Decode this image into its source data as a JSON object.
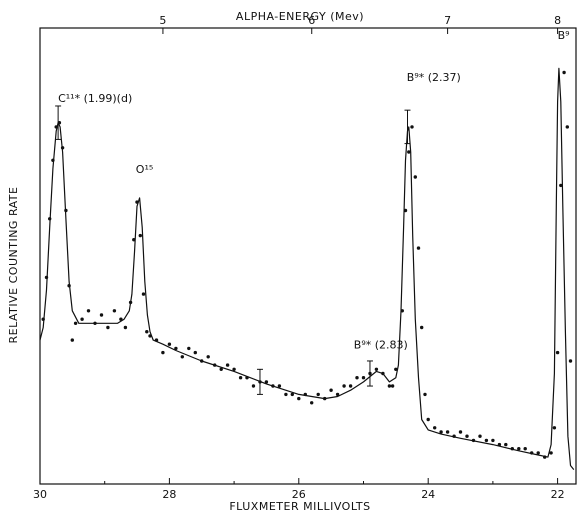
{
  "chart_data": {
    "type": "scatter",
    "xlabel": "FLUXMETER MILLIVOLTS",
    "ylabel": "RELATIVE COUNTING RATE",
    "top_axis_label": "ALPHA-ENERGY (Mev)",
    "xlim": [
      30,
      21.7
    ],
    "x_ticks": [
      30,
      28,
      26,
      24,
      22
    ],
    "top_ticks": [
      {
        "label": "5",
        "x": 28.1
      },
      {
        "label": "6",
        "x": 25.8
      },
      {
        "label": "7",
        "x": 23.7
      },
      {
        "label": "8",
        "x": 22.0
      }
    ],
    "ylim": [
      0,
      100
    ],
    "series": [
      {
        "name": "",
        "style": "fitted curve",
        "x": [
          30.0,
          29.95,
          29.9,
          29.85,
          29.8,
          29.75,
          29.72,
          29.69,
          29.65,
          29.6,
          29.55,
          29.5,
          29.4,
          29.2,
          29.0,
          28.8,
          28.7,
          28.62,
          28.58,
          28.54,
          28.5,
          28.46,
          28.42,
          28.38,
          28.34,
          28.3,
          28.25,
          28.1,
          27.9,
          27.5,
          27.0,
          26.5,
          26.0,
          25.6,
          25.4,
          25.2,
          25.0,
          24.8,
          24.7,
          24.6,
          24.5,
          24.46,
          24.42,
          24.38,
          24.35,
          24.32,
          24.3,
          24.27,
          24.24,
          24.2,
          24.15,
          24.1,
          24.0,
          23.8,
          23.5,
          23.0,
          22.6,
          22.3,
          22.15,
          22.1,
          22.05,
          22.02,
          22.0,
          21.98,
          21.95,
          21.92,
          21.88,
          21.84,
          21.8,
          21.75
        ],
        "y": [
          33,
          36,
          45,
          60,
          74,
          83,
          85,
          84,
          78,
          62,
          47,
          40,
          37,
          37,
          37,
          37,
          38,
          40,
          44,
          54,
          65,
          67,
          60,
          47,
          39,
          35,
          33,
          32,
          30.5,
          28,
          25.5,
          22.5,
          20,
          19,
          19.5,
          21,
          23,
          25.5,
          25,
          23,
          24,
          27,
          40,
          60,
          76,
          83,
          84,
          78,
          58,
          38,
          24,
          14,
          11.5,
          10.5,
          9.5,
          8,
          6.5,
          5.5,
          5,
          8,
          25,
          65,
          90,
          98,
          90,
          65,
          35,
          10,
          3,
          2
        ]
      },
      {
        "name": "",
        "style": "data points",
        "x": [
          29.95,
          29.9,
          29.85,
          29.8,
          29.75,
          29.7,
          29.65,
          29.6,
          29.55,
          29.5,
          29.45,
          29.35,
          29.25,
          29.15,
          29.05,
          28.95,
          28.85,
          28.75,
          28.68,
          28.6,
          28.55,
          28.5,
          28.45,
          28.4,
          28.35,
          28.3,
          28.2,
          28.1,
          28.0,
          27.9,
          27.8,
          27.7,
          27.6,
          27.5,
          27.4,
          27.3,
          27.2,
          27.1,
          27.0,
          26.9,
          26.8,
          26.7,
          26.6,
          26.5,
          26.4,
          26.3,
          26.2,
          26.1,
          26.0,
          25.9,
          25.8,
          25.7,
          25.6,
          25.5,
          25.4,
          25.3,
          25.2,
          25.1,
          25.0,
          24.9,
          24.8,
          24.7,
          24.6,
          24.55,
          24.5,
          24.4,
          24.35,
          24.3,
          24.25,
          24.2,
          24.15,
          24.1,
          24.05,
          24.0,
          23.9,
          23.8,
          23.7,
          23.6,
          23.5,
          23.4,
          23.3,
          23.2,
          23.1,
          23.0,
          22.9,
          22.8,
          22.7,
          22.6,
          22.5,
          22.4,
          22.3,
          22.2,
          22.1,
          22.05,
          22.0,
          21.95,
          21.9,
          21.85,
          21.8
        ],
        "y": [
          38,
          48,
          62,
          76,
          84,
          85,
          79,
          64,
          46,
          33,
          37,
          38,
          40,
          37,
          39,
          36,
          40,
          38,
          36,
          42,
          57,
          66,
          58,
          44,
          35,
          34,
          33,
          30,
          32,
          31,
          29,
          31,
          30,
          28,
          29,
          27,
          26,
          27,
          26,
          24,
          24,
          22,
          23,
          23,
          22,
          22,
          20,
          20,
          19,
          20,
          18,
          20,
          19,
          21,
          20,
          22,
          22,
          24,
          24,
          25,
          26,
          25,
          22,
          22,
          26,
          40,
          64,
          78,
          84,
          72,
          55,
          36,
          20,
          14,
          12,
          11,
          11,
          10,
          11,
          10,
          9,
          10,
          9,
          9,
          8,
          8,
          7,
          7,
          7,
          6,
          6,
          5,
          6,
          12,
          30,
          70,
          97,
          84,
          28
        ]
      }
    ],
    "annotations": [
      {
        "text": "C¹¹* (1.99)(d)",
        "x": 29.72,
        "y": 90
      },
      {
        "text": "O¹⁵",
        "x": 28.52,
        "y": 73
      },
      {
        "text": "B⁹* (2.37)",
        "x": 24.33,
        "y": 95
      },
      {
        "text": "B⁹* (2.83)",
        "x": 25.15,
        "y": 31
      },
      {
        "text": "B⁹",
        "x": 22.0,
        "y": 105
      }
    ],
    "error_bars": [
      {
        "x": 29.72,
        "y": 85,
        "err": 4
      },
      {
        "x": 26.6,
        "y": 23,
        "err": 3
      },
      {
        "x": 24.9,
        "y": 25,
        "err": 3
      },
      {
        "x": 24.32,
        "y": 84,
        "err": 4
      }
    ],
    "grid": false
  }
}
